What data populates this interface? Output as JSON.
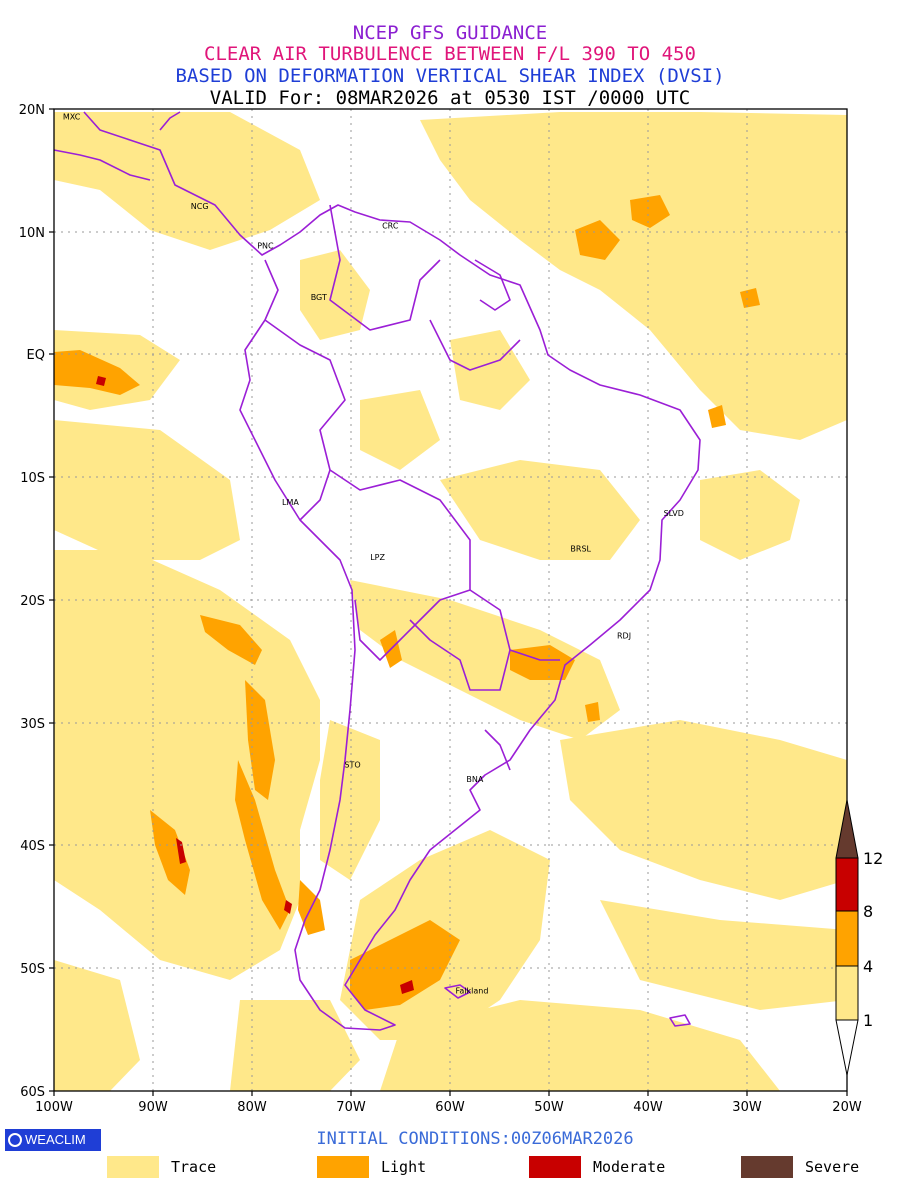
{
  "titles": {
    "line1": "NCEP GFS GUIDANCE",
    "line2": "CLEAR AIR TURBULENCE BETWEEN F/L 390 TO 450",
    "line3": "BASED ON DEFORMATION VERTICAL SHEAR INDEX (DVSI)",
    "line4": "VALID For: 08MAR2026 at 0530 IST /0000 UTC"
  },
  "axes": {
    "lat_labels": [
      "20N",
      "10N",
      "EQ",
      "10S",
      "20S",
      "30S",
      "40S",
      "50S",
      "60S"
    ],
    "lon_labels": [
      "100W",
      "90W",
      "80W",
      "70W",
      "60W",
      "50W",
      "40W",
      "30W",
      "20W"
    ]
  },
  "cities": [
    {
      "code": "MXC",
      "lon": -99.1,
      "lat": 19.4
    },
    {
      "code": "NCG",
      "lon": -86.2,
      "lat": 12.1
    },
    {
      "code": "CRC",
      "lon": -66.9,
      "lat": 10.5
    },
    {
      "code": "PNC",
      "lon": -79.5,
      "lat": 8.9
    },
    {
      "code": "BGT",
      "lon": -74.1,
      "lat": 4.7
    },
    {
      "code": "LMA",
      "lon": -77.0,
      "lat": -12.0
    },
    {
      "code": "SLVD",
      "lon": -38.5,
      "lat": -12.9
    },
    {
      "code": "BRSL",
      "lon": -47.9,
      "lat": -15.8
    },
    {
      "code": "LPZ",
      "lon": -68.1,
      "lat": -16.5
    },
    {
      "code": "RDJ",
      "lon": -43.2,
      "lat": -22.9
    },
    {
      "code": "STO",
      "lon": -70.7,
      "lat": -33.4
    },
    {
      "code": "BNA",
      "lon": -58.4,
      "lat": -34.6
    },
    {
      "code": "Falkland",
      "lon": -59.5,
      "lat": -51.8
    }
  ],
  "colorbar": {
    "ticks": [
      "1",
      "4",
      "8",
      "12"
    ],
    "colors": {
      "below": "#ffffff",
      "trace": "#ffe88a",
      "light": "#ffa300",
      "moderate": "#c80000",
      "severe": "#653a2e"
    }
  },
  "logo": {
    "label": "WEACLIM"
  },
  "initial_conditions": "INITIAL CONDITIONS:00Z06MAR2026",
  "legend": [
    {
      "label": "Trace",
      "color": "#ffe88a"
    },
    {
      "label": "Light",
      "color": "#ffa300"
    },
    {
      "label": "Moderate",
      "color": "#c80000"
    },
    {
      "label": "Severe",
      "color": "#653a2e"
    }
  ]
}
